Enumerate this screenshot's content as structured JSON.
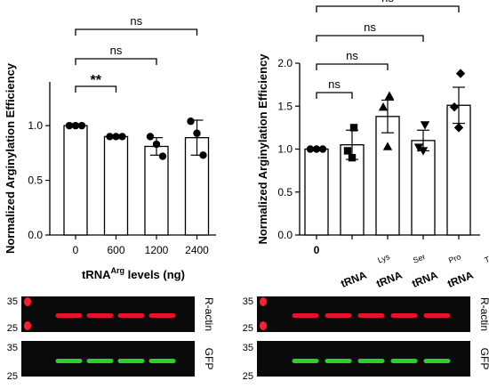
{
  "chart_data": [
    {
      "type": "bar",
      "ylabel": "Normalized Arginylation Efficiency",
      "xlabel_main": "tRNA",
      "xlabel_sup": "Arg",
      "xlabel_suffix": " levels (ng)",
      "categories": [
        "0",
        "600",
        "1200",
        "2400"
      ],
      "values": [
        1.0,
        0.9,
        0.81,
        0.89
      ],
      "errors": [
        0.005,
        0.01,
        0.08,
        0.16
      ],
      "points": [
        [
          1.0,
          1.0,
          1.0
        ],
        [
          0.9,
          0.9,
          0.9
        ],
        [
          0.9,
          0.83,
          0.72
        ],
        [
          1.04,
          0.93,
          0.73
        ]
      ],
      "marker": "circle",
      "ylim": [
        0,
        1.4
      ],
      "yticks": [
        "0.0",
        "0.5",
        "1.0"
      ],
      "ytick_values": [
        0,
        0.5,
        1.0
      ],
      "significance": [
        {
          "from": 0,
          "to": 1,
          "label": "**"
        },
        {
          "from": 0,
          "to": 2,
          "label": "ns"
        },
        {
          "from": 0,
          "to": 3,
          "label": "ns"
        }
      ]
    },
    {
      "type": "bar",
      "ylabel": "Normalized Arginylation Efficiency",
      "categories": [
        {
          "main": "0",
          "sup": ""
        },
        {
          "main": "tRNA",
          "sup": "Lys"
        },
        {
          "main": "tRNA",
          "sup": "Ser"
        },
        {
          "main": "tRNA",
          "sup": "Pro"
        },
        {
          "main": "tRNA",
          "sup": "Thr"
        }
      ],
      "values": [
        1.0,
        1.05,
        1.38,
        1.1,
        1.51
      ],
      "errors": [
        0.01,
        0.17,
        0.19,
        0.12,
        0.21
      ],
      "points": [
        [
          1.0,
          1.0,
          1.0
        ],
        [
          1.25,
          0.98,
          0.9
        ],
        [
          1.62,
          1.49,
          1.03
        ],
        [
          1.28,
          1.02,
          0.98
        ],
        [
          1.88,
          1.49,
          1.25
        ]
      ],
      "markers": [
        "circle",
        "square",
        "triangle-up",
        "triangle-down",
        "diamond"
      ],
      "ylim": [
        0,
        2.0
      ],
      "yticks": [
        "0.0",
        "0.5",
        "1.0",
        "1.5",
        "2.0"
      ],
      "ytick_values": [
        0,
        0.5,
        1.0,
        1.5,
        2.0
      ],
      "significance": [
        {
          "from": 0,
          "to": 1,
          "label": "ns"
        },
        {
          "from": 0,
          "to": 2,
          "label": "ns"
        },
        {
          "from": 0,
          "to": 3,
          "label": "ns"
        },
        {
          "from": 0,
          "to": 4,
          "label": "ns"
        }
      ]
    }
  ],
  "blots": {
    "left": {
      "marker_top": "35",
      "marker_bottom": "25",
      "gfp_marker_top": "35",
      "gfp_marker_bottom": "25",
      "actin_label": "R-actin",
      "gfp_label": "GFP",
      "lanes": 4
    },
    "right": {
      "marker_top": "35",
      "marker_bottom": "25",
      "gfp_marker_top": "35",
      "gfp_marker_bottom": "25",
      "actin_label": "R-actin",
      "gfp_label": "GFP",
      "lanes": 5
    },
    "colors": {
      "background": "#0a0a0a",
      "actin": "#e8102a",
      "gfp": "#2bd02b",
      "ladder": "#ff1f2f"
    }
  }
}
